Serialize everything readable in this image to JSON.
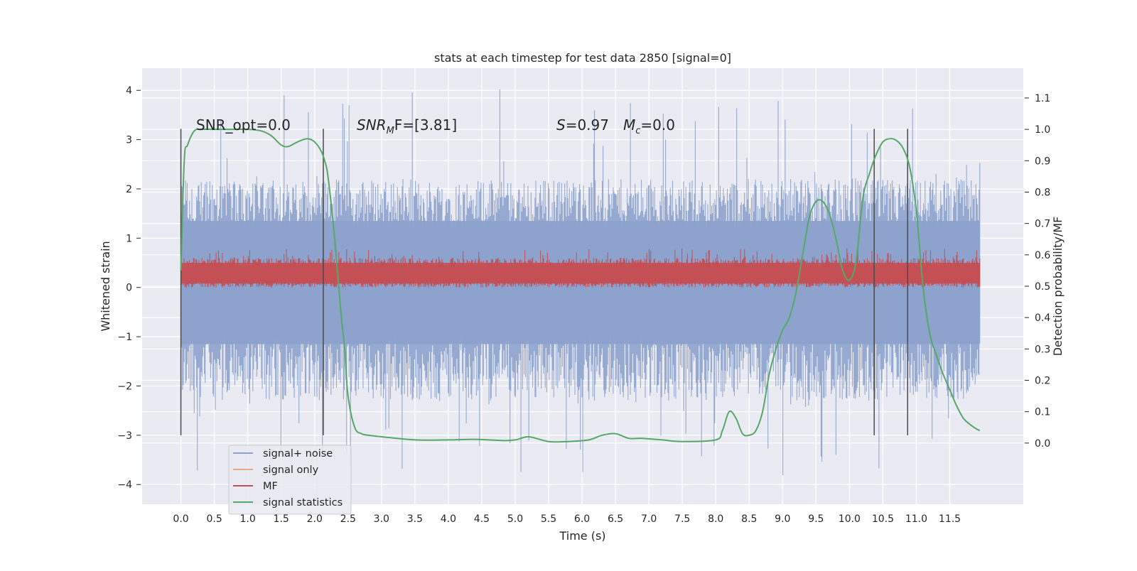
{
  "chart_data": {
    "type": "line",
    "title": "stats at each timestep for test data 2850 [signal=0]",
    "xlabel": "Time (s)",
    "ylabel": "Whitened strain",
    "ylabel_right": "Detection probability/MF",
    "xlim": [
      -0.58,
      12.6
    ],
    "ylim": [
      -4.4,
      4.45
    ],
    "ylim_right": [
      -0.195,
      1.195
    ],
    "x_ticks": [
      "0.0",
      "0.5",
      "1.0",
      "1.5",
      "2.0",
      "2.5",
      "3.0",
      "3.5",
      "4.0",
      "4.5",
      "5.0",
      "5.5",
      "6.0",
      "6.5",
      "7.0",
      "7.5",
      "8.0",
      "8.5",
      "9.0",
      "9.5",
      "10.0",
      "10.5",
      "11.0",
      "11.5"
    ],
    "y_ticks": [
      "4",
      "3",
      "2",
      "1",
      "0",
      "−1",
      "−2",
      "−3",
      "−4"
    ],
    "y_ticks_right": [
      "1.1",
      "1.0",
      "0.9",
      "0.8",
      "0.7",
      "0.6",
      "0.5",
      "0.4",
      "0.3",
      "0.2",
      "0.1",
      "0.0"
    ],
    "grid": true,
    "legend_position": "lower-left",
    "annotations": {
      "snr_opt": "SNR_opt=0.0",
      "snr_mf_symbol": "SNR",
      "snr_mf_sub": "M",
      "snr_mf_tail": "F=[3.81]",
      "s_symbol": "S",
      "s_value": "=0.97",
      "mc_symbol": "M",
      "mc_sub": "c",
      "mc_value": "=0.0"
    },
    "colors": {
      "signal_noise": "#8da2cc",
      "signal_only": "#e8a68a",
      "mf": "#c44e52",
      "signal_statistics": "#55a868",
      "marker_lines": "#4a4a4a",
      "plot_background": "#eaeaf2"
    },
    "series": [
      {
        "name": "signal+ noise",
        "envelope": {
          "x_range": [
            0.0,
            11.95
          ],
          "typical_min": -2.3,
          "typical_max": 2.2,
          "outlier_min": -3.85,
          "outlier_max": 4.1
        }
      },
      {
        "name": "signal only",
        "values": []
      },
      {
        "name": "MF",
        "envelope": {
          "x_range": [
            0.0,
            11.95
          ],
          "typical_min": 0.05,
          "typical_max": 0.6,
          "peak_max": 0.8,
          "floor": 0.0
        }
      },
      {
        "name": "signal statistics",
        "axis": "right",
        "x": [
          0.0,
          0.05,
          0.1,
          0.2,
          0.3,
          0.5,
          0.8,
          1.0,
          1.2,
          1.35,
          1.5,
          1.6,
          1.7,
          1.8,
          1.9,
          2.0,
          2.1,
          2.15,
          2.2,
          2.3,
          2.4,
          2.45,
          2.5,
          2.6,
          2.7,
          2.8,
          3.0,
          3.5,
          4.0,
          4.4,
          4.8,
          5.0,
          5.2,
          5.5,
          5.8,
          6.1,
          6.3,
          6.5,
          6.7,
          6.9,
          7.2,
          7.5,
          8.0,
          8.1,
          8.2,
          8.3,
          8.4,
          8.5,
          8.6,
          8.7,
          8.8,
          8.9,
          9.0,
          9.1,
          9.2,
          9.3,
          9.4,
          9.5,
          9.6,
          9.7,
          9.8,
          9.9,
          10.0,
          10.1,
          10.2,
          10.3,
          10.4,
          10.5,
          10.6,
          10.7,
          10.8,
          10.9,
          11.0,
          11.1,
          11.2,
          11.3,
          11.4,
          11.5,
          11.6,
          11.7,
          11.8,
          11.9,
          11.95
        ],
        "values": [
          0.55,
          0.9,
          0.95,
          0.995,
          1.0,
          1.0,
          1.0,
          1.0,
          0.995,
          0.98,
          0.95,
          0.945,
          0.955,
          0.965,
          0.97,
          0.96,
          0.93,
          0.9,
          0.85,
          0.65,
          0.4,
          0.3,
          0.15,
          0.05,
          0.03,
          0.025,
          0.02,
          0.01,
          0.01,
          0.012,
          0.008,
          0.01,
          0.02,
          0.005,
          0.005,
          0.01,
          0.025,
          0.03,
          0.015,
          0.015,
          0.01,
          0.005,
          0.01,
          0.04,
          0.1,
          0.08,
          0.03,
          0.025,
          0.04,
          0.1,
          0.22,
          0.3,
          0.36,
          0.4,
          0.48,
          0.6,
          0.72,
          0.77,
          0.77,
          0.73,
          0.65,
          0.55,
          0.52,
          0.58,
          0.78,
          0.86,
          0.92,
          0.96,
          0.97,
          0.965,
          0.94,
          0.88,
          0.74,
          0.5,
          0.35,
          0.28,
          0.22,
          0.17,
          0.12,
          0.08,
          0.06,
          0.045,
          0.04
        ]
      }
    ],
    "vertical_lines_x": [
      0.0,
      2.13,
      10.37,
      10.87
    ],
    "vertical_lines_yrange": [
      -3.0,
      3.22
    ]
  }
}
